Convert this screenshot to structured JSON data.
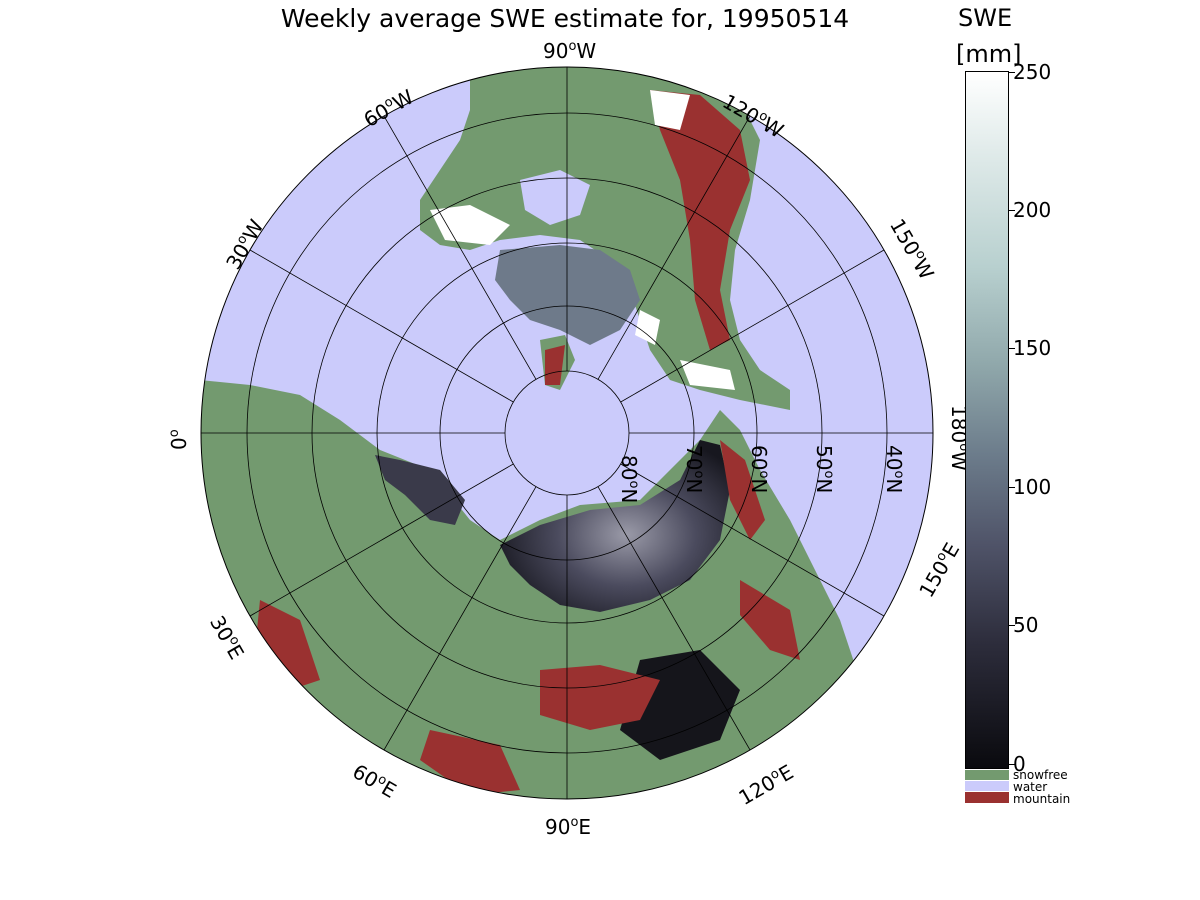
{
  "title": "Weekly average SWE estimate for, 19950514",
  "colorbar": {
    "label_line1": "SWE",
    "label_line2": "[mm]",
    "ticks": [
      {
        "value": 250,
        "label": "250"
      },
      {
        "value": 200,
        "label": "200"
      },
      {
        "value": 150,
        "label": "150"
      },
      {
        "value": 100,
        "label": "100"
      },
      {
        "value": 50,
        "label": "50"
      },
      {
        "value": 0,
        "label": "0"
      }
    ],
    "range": [
      0,
      250
    ]
  },
  "legend": [
    {
      "label": "snowfree",
      "color": "#739a6f"
    },
    {
      "label": "water",
      "color": "#cbcbfb"
    },
    {
      "label": "mountain",
      "color": "#9a3130"
    }
  ],
  "longitude_labels": [
    {
      "deg": "90",
      "dir": "W"
    },
    {
      "deg": "120",
      "dir": "W"
    },
    {
      "deg": "150",
      "dir": "W"
    },
    {
      "deg": "180",
      "dir": "W"
    },
    {
      "deg": "150",
      "dir": "E"
    },
    {
      "deg": "120",
      "dir": "E"
    },
    {
      "deg": "90",
      "dir": "E"
    },
    {
      "deg": "60",
      "dir": "E"
    },
    {
      "deg": "30",
      "dir": "E"
    },
    {
      "deg": "0",
      "dir": ""
    },
    {
      "deg": "30",
      "dir": "W"
    },
    {
      "deg": "60",
      "dir": "W"
    }
  ],
  "latitude_labels": [
    {
      "deg": "80",
      "dir": "N"
    },
    {
      "deg": "70",
      "dir": "N"
    },
    {
      "deg": "60",
      "dir": "N"
    },
    {
      "deg": "50",
      "dir": "N"
    },
    {
      "deg": "40",
      "dir": "N"
    }
  ],
  "colors": {
    "water": "#cbcbfb",
    "snowfree": "#739a6f",
    "mountain": "#9a3130",
    "snow_low": "#0a0a0e",
    "snow_high": "#ffffff"
  }
}
